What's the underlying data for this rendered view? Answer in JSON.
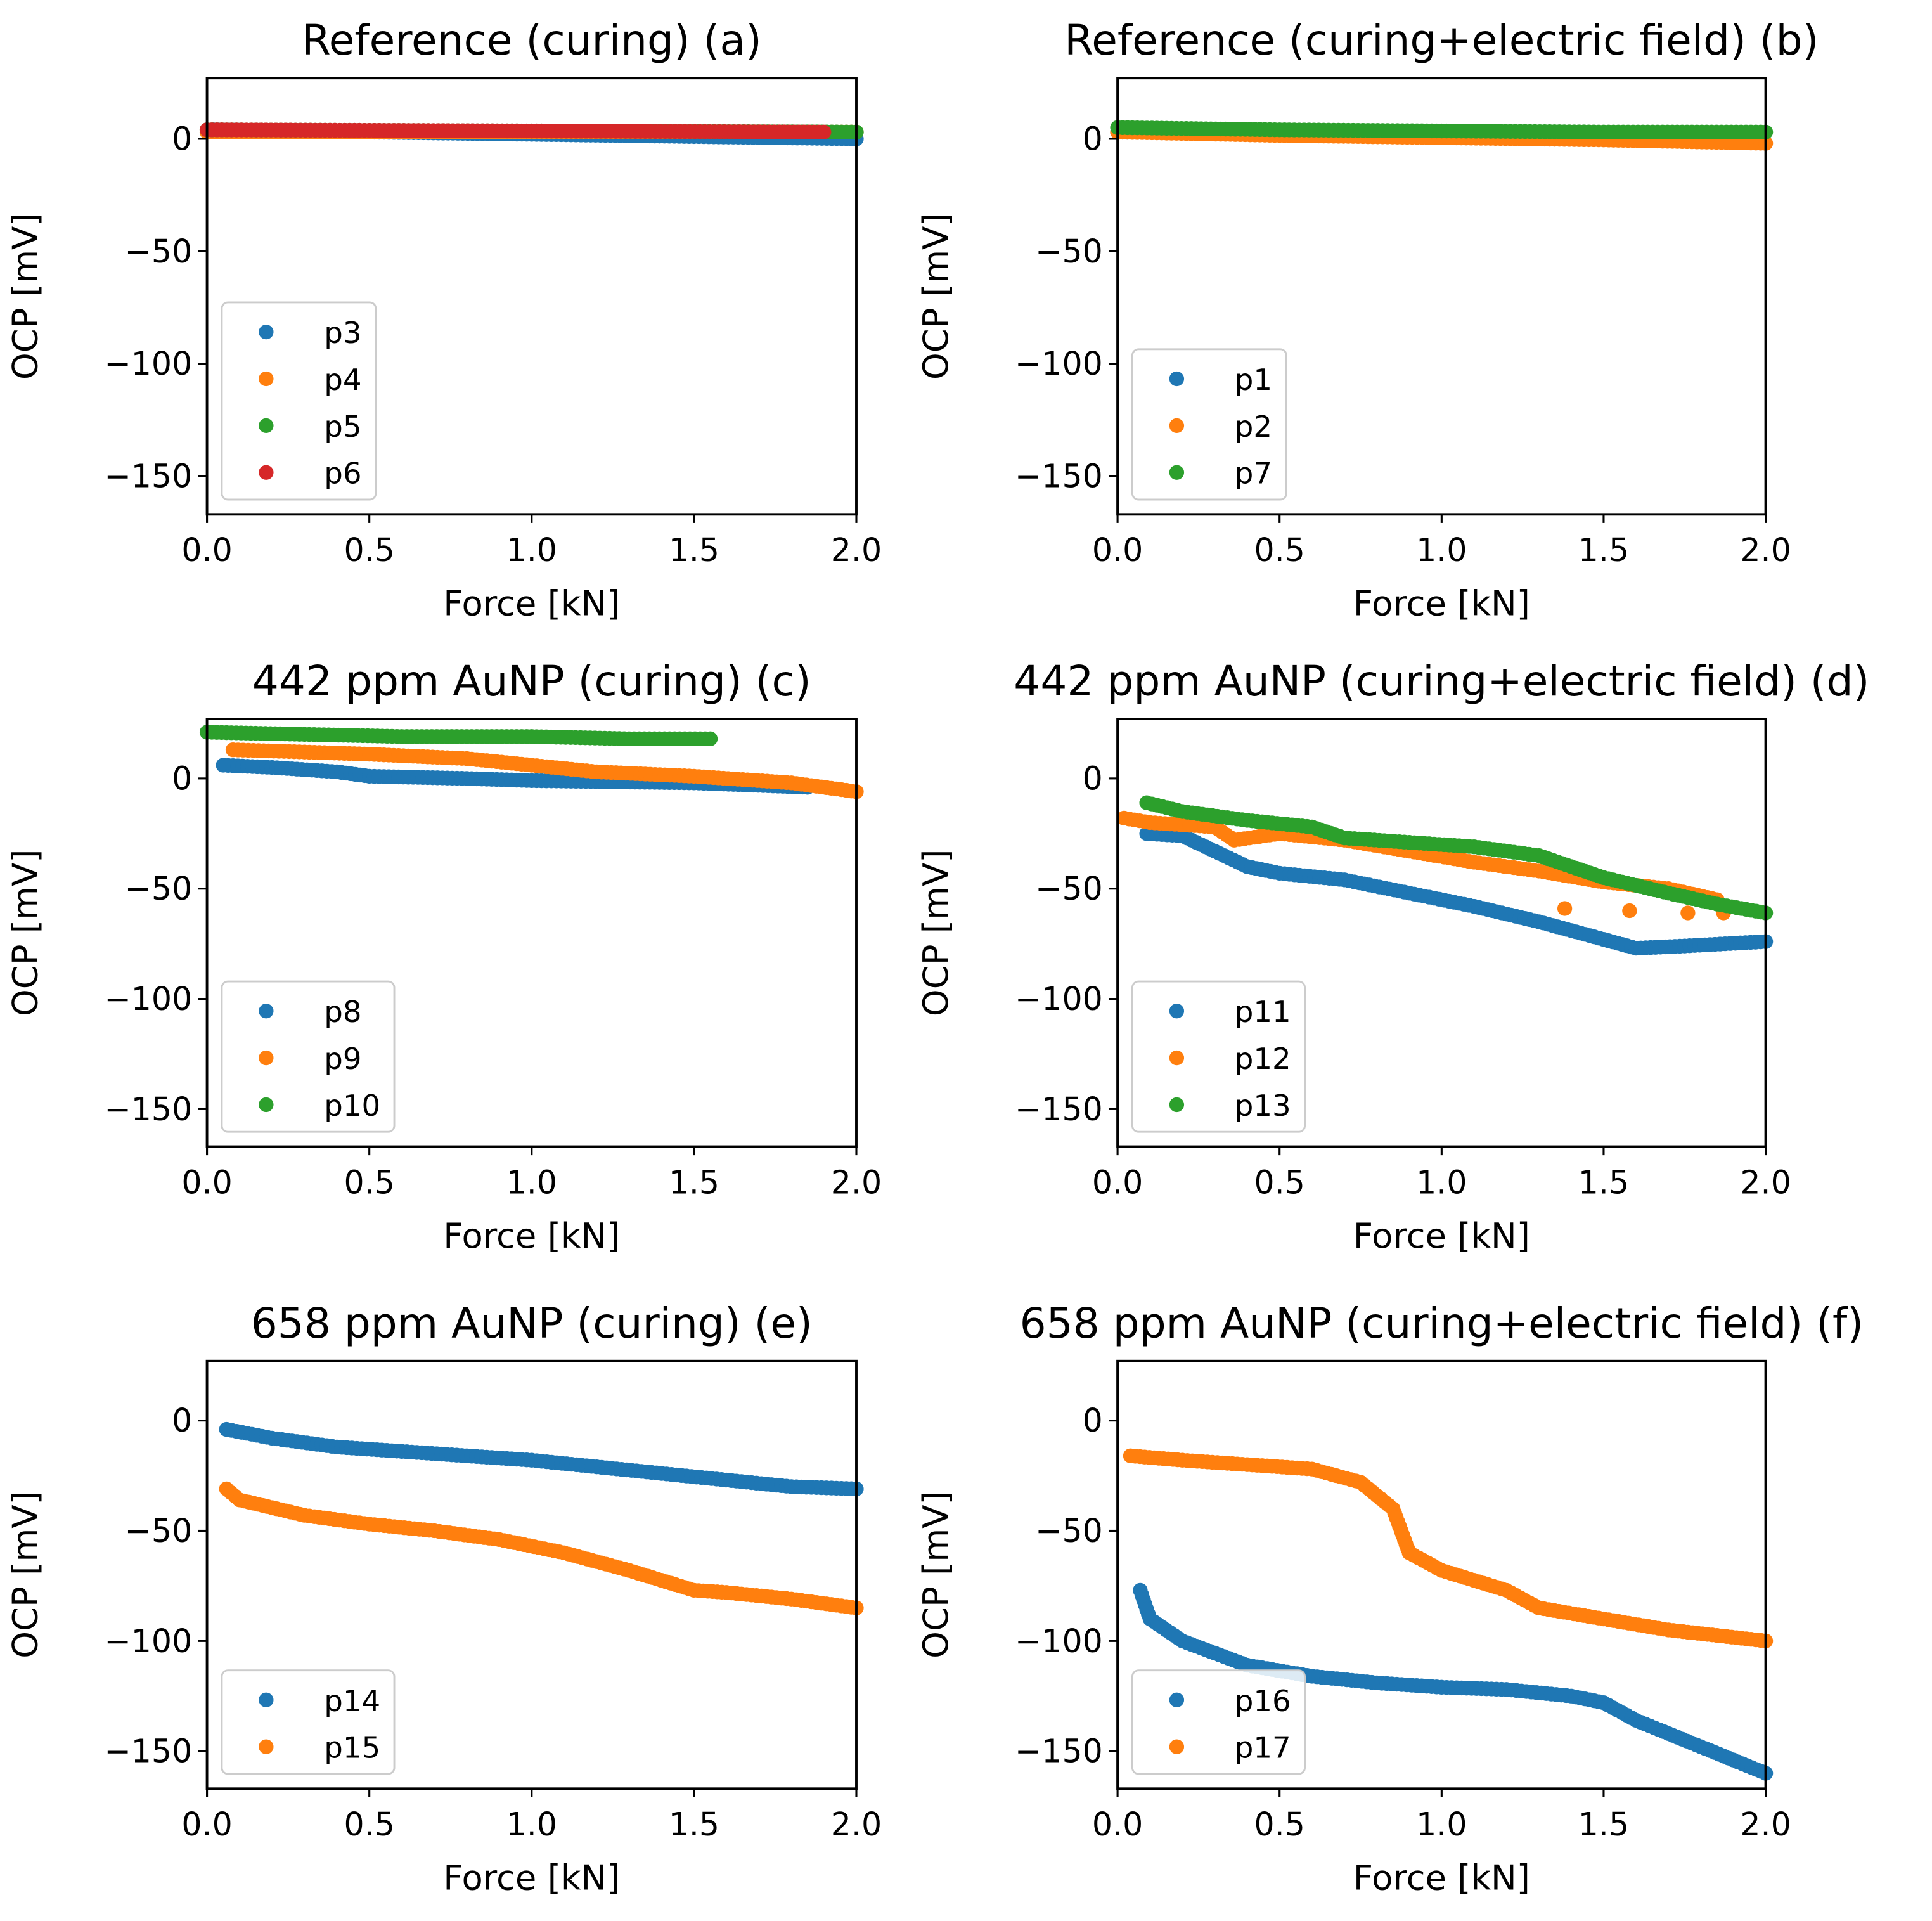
{
  "colors": {
    "C0": "#1f77b4",
    "C1": "#ff7f0e",
    "C2": "#2ca02c",
    "C3": "#d62728"
  },
  "chart_data": [
    {
      "type": "scatter",
      "title": "Reference (curing)    (a)",
      "xlabel": "Force [kN]",
      "ylabel": "OCP [mV]",
      "xlim": [
        0,
        2
      ],
      "ylim": [
        -167,
        27
      ],
      "xticks": [
        "0.0",
        "0.5",
        "1.0",
        "1.5",
        "2.0"
      ],
      "yticks": [
        "0",
        "−50",
        "−100",
        "−150"
      ],
      "legend": "lower-left",
      "series": [
        {
          "name": "p3",
          "color": "C0",
          "points": [
            [
              0.02,
              4
            ],
            [
              0.5,
              3
            ],
            [
              1.0,
              2
            ],
            [
              1.5,
              1
            ],
            [
              2.0,
              0
            ]
          ]
        },
        {
          "name": "p4",
          "color": "C1",
          "points": [
            [
              0.0,
              3
            ],
            [
              1.0,
              3
            ],
            [
              2.0,
              3
            ]
          ]
        },
        {
          "name": "p5",
          "color": "C2",
          "points": [
            [
              0.0,
              4
            ],
            [
              1.0,
              3.5
            ],
            [
              2.0,
              3
            ]
          ]
        },
        {
          "name": "p6",
          "color": "C3",
          "points": [
            [
              0.0,
              4
            ],
            [
              1.0,
              3.5
            ],
            [
              1.9,
              3
            ]
          ]
        }
      ]
    },
    {
      "type": "scatter",
      "title": "Reference (curing+electric field) (b)",
      "xlabel": "Force [kN]",
      "ylabel": "OCP [mV]",
      "xlim": [
        0,
        2
      ],
      "ylim": [
        -167,
        27
      ],
      "xticks": [
        "0.0",
        "0.5",
        "1.0",
        "1.5",
        "2.0"
      ],
      "yticks": [
        "0",
        "−50",
        "−100",
        "−150"
      ],
      "legend": "lower-left",
      "series": [
        {
          "name": "p1",
          "color": "C0",
          "points": [
            [
              0.0,
              3
            ],
            [
              0.5,
              2
            ],
            [
              1.0,
              1
            ]
          ]
        },
        {
          "name": "p2",
          "color": "C1",
          "points": [
            [
              0.0,
              3
            ],
            [
              0.5,
              1.5
            ],
            [
              1.0,
              0.5
            ],
            [
              1.5,
              -0.5
            ],
            [
              2.0,
              -2
            ]
          ]
        },
        {
          "name": "p7",
          "color": "C2",
          "points": [
            [
              0.0,
              5
            ],
            [
              0.5,
              4
            ],
            [
              1.0,
              3.5
            ],
            [
              1.5,
              3
            ],
            [
              2.0,
              3
            ]
          ]
        }
      ]
    },
    {
      "type": "scatter",
      "title": "442 ppm AuNP (curing) (c)",
      "xlabel": "Force [kN]",
      "ylabel": "OCP [mV]",
      "xlim": [
        0,
        2
      ],
      "ylim": [
        -167,
        27
      ],
      "xticks": [
        "0.0",
        "0.5",
        "1.0",
        "1.5",
        "2.0"
      ],
      "yticks": [
        "0",
        "−50",
        "−100",
        "−150"
      ],
      "legend": "lower-left",
      "series": [
        {
          "name": "p8",
          "color": "C0",
          "points": [
            [
              0.05,
              6
            ],
            [
              0.2,
              5
            ],
            [
              0.4,
              3
            ],
            [
              0.5,
              1
            ],
            [
              0.8,
              0
            ],
            [
              1.0,
              -1
            ],
            [
              1.5,
              -2
            ],
            [
              1.85,
              -4
            ]
          ]
        },
        {
          "name": "p9",
          "color": "C1",
          "points": [
            [
              0.08,
              13
            ],
            [
              0.3,
              12
            ],
            [
              0.5,
              11
            ],
            [
              0.8,
              9
            ],
            [
              1.0,
              6
            ],
            [
              1.2,
              3
            ],
            [
              1.5,
              1
            ],
            [
              1.8,
              -2
            ],
            [
              2.0,
              -6
            ]
          ]
        },
        {
          "name": "p10",
          "color": "C2",
          "points": [
            [
              0.0,
              21
            ],
            [
              0.3,
              20
            ],
            [
              0.6,
              19
            ],
            [
              1.0,
              19
            ],
            [
              1.3,
              18
            ],
            [
              1.55,
              18
            ]
          ]
        }
      ]
    },
    {
      "type": "scatter",
      "title": "442 ppm AuNP (curing+electric field) (d)",
      "xlabel": "Force [kN]",
      "ylabel": "OCP [mV]",
      "xlim": [
        0,
        2
      ],
      "ylim": [
        -167,
        27
      ],
      "xticks": [
        "0.0",
        "0.5",
        "1.0",
        "1.5",
        "2.0"
      ],
      "yticks": [
        "0",
        "−50",
        "−100",
        "−150"
      ],
      "legend": "lower-left",
      "series": [
        {
          "name": "p11",
          "color": "C0",
          "points": [
            [
              0.09,
              -25
            ],
            [
              0.2,
              -26
            ],
            [
              0.3,
              -33
            ],
            [
              0.4,
              -40
            ],
            [
              0.5,
              -43
            ],
            [
              0.7,
              -46
            ],
            [
              0.9,
              -52
            ],
            [
              1.1,
              -58
            ],
            [
              1.3,
              -65
            ],
            [
              1.5,
              -73
            ],
            [
              1.6,
              -77
            ],
            [
              1.75,
              -76
            ],
            [
              2.0,
              -74
            ]
          ]
        },
        {
          "name": "p12",
          "color": "C1",
          "points": [
            [
              0.02,
              -18
            ],
            [
              0.1,
              -20
            ],
            [
              0.3,
              -22
            ],
            [
              0.36,
              -28
            ],
            [
              0.5,
              -25
            ],
            [
              0.7,
              -28
            ],
            [
              0.9,
              -33
            ],
            [
              1.1,
              -38
            ],
            [
              1.3,
              -42
            ],
            [
              1.5,
              -47
            ],
            [
              1.7,
              -50
            ],
            [
              1.85,
              -55
            ]
          ],
          "isolated": [
            [
              1.38,
              -59
            ],
            [
              1.58,
              -60
            ],
            [
              1.76,
              -61
            ],
            [
              1.87,
              -61
            ]
          ]
        },
        {
          "name": "p13",
          "color": "C2",
          "points": [
            [
              0.09,
              -11
            ],
            [
              0.2,
              -15
            ],
            [
              0.4,
              -19
            ],
            [
              0.6,
              -22
            ],
            [
              0.7,
              -27
            ],
            [
              0.9,
              -29
            ],
            [
              1.1,
              -31
            ],
            [
              1.3,
              -35
            ],
            [
              1.5,
              -45
            ],
            [
              1.7,
              -52
            ],
            [
              1.85,
              -57
            ],
            [
              2.0,
              -61
            ]
          ]
        }
      ]
    },
    {
      "type": "scatter",
      "title": "658 ppm AuNP (curing)    (e)",
      "xlabel": "Force [kN]",
      "ylabel": "OCP [mV]",
      "xlim": [
        0,
        2
      ],
      "ylim": [
        -167,
        27
      ],
      "xticks": [
        "0.0",
        "0.5",
        "1.0",
        "1.5",
        "2.0"
      ],
      "yticks": [
        "0",
        "−50",
        "−100",
        "−150"
      ],
      "legend": "lower-left",
      "series": [
        {
          "name": "p14",
          "color": "C0",
          "points": [
            [
              0.06,
              -4
            ],
            [
              0.2,
              -8
            ],
            [
              0.4,
              -12
            ],
            [
              0.6,
              -14
            ],
            [
              0.8,
              -16
            ],
            [
              1.0,
              -18
            ],
            [
              1.2,
              -21
            ],
            [
              1.4,
              -24
            ],
            [
              1.6,
              -27
            ],
            [
              1.8,
              -30
            ],
            [
              2.0,
              -31
            ]
          ]
        },
        {
          "name": "p15",
          "color": "C1",
          "points": [
            [
              0.06,
              -31
            ],
            [
              0.1,
              -36
            ],
            [
              0.3,
              -43
            ],
            [
              0.5,
              -47
            ],
            [
              0.7,
              -50
            ],
            [
              0.9,
              -54
            ],
            [
              1.1,
              -60
            ],
            [
              1.3,
              -68
            ],
            [
              1.5,
              -77
            ],
            [
              1.6,
              -78
            ],
            [
              1.8,
              -81
            ],
            [
              2.0,
              -85
            ]
          ]
        }
      ]
    },
    {
      "type": "scatter",
      "title": "658 ppm AuNP (curing+electric field) (f)",
      "xlabel": "Force [kN]",
      "ylabel": "OCP [mV]",
      "xlim": [
        0,
        2
      ],
      "ylim": [
        -167,
        27
      ],
      "xticks": [
        "0.0",
        "0.5",
        "1.0",
        "1.5",
        "2.0"
      ],
      "yticks": [
        "0",
        "−50",
        "−100",
        "−150"
      ],
      "legend": "lower-left",
      "series": [
        {
          "name": "p16",
          "color": "C0",
          "points": [
            [
              0.07,
              -77
            ],
            [
              0.1,
              -90
            ],
            [
              0.2,
              -100
            ],
            [
              0.4,
              -111
            ],
            [
              0.6,
              -116
            ],
            [
              0.8,
              -119
            ],
            [
              1.0,
              -121
            ],
            [
              1.2,
              -122
            ],
            [
              1.4,
              -125
            ],
            [
              1.5,
              -128
            ],
            [
              1.6,
              -136
            ],
            [
              1.8,
              -148
            ],
            [
              2.0,
              -160
            ]
          ]
        },
        {
          "name": "p17",
          "color": "C1",
          "points": [
            [
              0.04,
              -16
            ],
            [
              0.2,
              -18
            ],
            [
              0.4,
              -20
            ],
            [
              0.6,
              -22
            ],
            [
              0.75,
              -28
            ],
            [
              0.85,
              -40
            ],
            [
              0.9,
              -60
            ],
            [
              1.0,
              -68
            ],
            [
              1.2,
              -77
            ],
            [
              1.3,
              -85
            ],
            [
              1.5,
              -90
            ],
            [
              1.7,
              -95
            ],
            [
              2.0,
              -100
            ]
          ]
        }
      ]
    }
  ]
}
